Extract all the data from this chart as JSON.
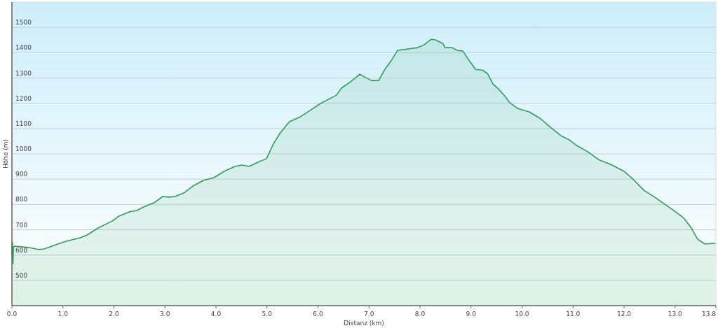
{
  "chart_data": {
    "type": "area",
    "xlabel": "Distanz (km)",
    "ylabel": "Höhe (m)",
    "xlim": [
      0,
      13.8
    ],
    "ylim": [
      400,
      1600
    ],
    "xticks": [
      {
        "value": 0,
        "label": "0.0"
      },
      {
        "value": 1,
        "label": "1.0"
      },
      {
        "value": 2,
        "label": "2.0"
      },
      {
        "value": 3,
        "label": "3.0"
      },
      {
        "value": 4,
        "label": "4.0"
      },
      {
        "value": 5,
        "label": "5.0"
      },
      {
        "value": 6,
        "label": "6.0"
      },
      {
        "value": 7,
        "label": "7.0"
      },
      {
        "value": 8,
        "label": "8.0"
      },
      {
        "value": 9,
        "label": "9.0"
      },
      {
        "value": 10,
        "label": "10.0"
      },
      {
        "value": 11,
        "label": "11.0"
      },
      {
        "value": 12,
        "label": "12.0"
      },
      {
        "value": 13,
        "label": "13.0"
      },
      {
        "value": 13.8,
        "label": "13.8"
      }
    ],
    "yticks": [
      500,
      600,
      700,
      800,
      900,
      1000,
      1100,
      1200,
      1300,
      1400,
      1500
    ],
    "grid": "y",
    "series": [
      {
        "color": "#2e9e57",
        "x": [
          0,
          0.01,
          0.02,
          0.03,
          0.05,
          0.32,
          0.52,
          0.63,
          0.87,
          1.07,
          1.35,
          1.48,
          1.69,
          1.97,
          2.1,
          2.31,
          2.45,
          2.58,
          2.79,
          2.96,
          3.07,
          3.2,
          3.37,
          3.55,
          3.75,
          3.96,
          4.16,
          4.37,
          4.51,
          4.65,
          4.82,
          4.99,
          5.13,
          5.26,
          5.44,
          5.65,
          5.84,
          6.05,
          6.23,
          6.36,
          6.46,
          6.64,
          6.82,
          6.94,
          7.05,
          7.19,
          7.3,
          7.44,
          7.56,
          7.74,
          7.95,
          8.08,
          8.22,
          8.31,
          8.45,
          8.49,
          8.63,
          8.73,
          8.84,
          8.95,
          9.0,
          9.09,
          9.22,
          9.32,
          9.43,
          9.55,
          9.66,
          9.76,
          9.91,
          10.14,
          10.35,
          10.56,
          10.76,
          10.93,
          11.07,
          11.29,
          11.52,
          11.73,
          12.0,
          12.17,
          12.39,
          12.62,
          12.82,
          13.03,
          13.17,
          13.31,
          13.44,
          13.58,
          13.79
        ],
        "values": [
          600,
          650,
          565,
          630,
          635,
          630,
          622,
          624,
          641,
          655,
          669,
          680,
          707,
          735,
          754,
          771,
          776,
          790,
          807,
          832,
          829,
          832,
          845,
          873,
          895,
          906,
          931,
          950,
          956,
          950,
          967,
          981,
          1041,
          1083,
          1127,
          1146,
          1171,
          1199,
          1218,
          1232,
          1260,
          1285,
          1315,
          1301,
          1290,
          1290,
          1331,
          1370,
          1409,
          1414,
          1420,
          1431,
          1453,
          1450,
          1436,
          1420,
          1420,
          1409,
          1406,
          1373,
          1359,
          1334,
          1331,
          1318,
          1276,
          1254,
          1229,
          1202,
          1180,
          1166,
          1141,
          1105,
          1072,
          1055,
          1033,
          1008,
          975,
          959,
          931,
          901,
          856,
          826,
          798,
          768,
          746,
          710,
          663,
          644,
          646
        ]
      }
    ]
  }
}
